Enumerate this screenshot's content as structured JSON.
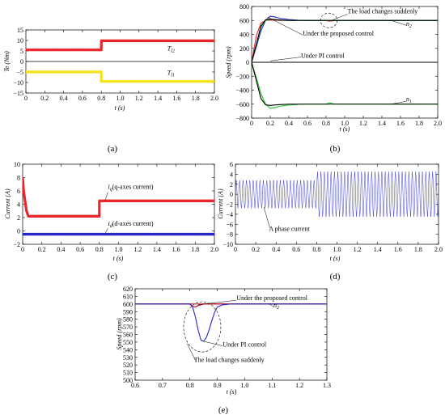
{
  "colors": {
    "red": "#e8262b",
    "yellow": "#f2e21c",
    "blue": "#2727c8",
    "green": "#22c02a",
    "black": "#000000",
    "dark_red": "#c0001a"
  },
  "chart_data": [
    {
      "id": "a",
      "type": "line",
      "caption": "(a)",
      "xlabel": "t (s)",
      "ylabel": "Te (Nm)",
      "xlim": [
        0,
        2.0
      ],
      "ylim": [
        -15,
        15
      ],
      "xticks": [
        "0",
        "0.2",
        "0.4",
        "0.6",
        "0.8",
        "1.0",
        "1.2",
        "1.4",
        "1.6",
        "1.8",
        "2.0"
      ],
      "yticks": [
        "15",
        "10",
        "5",
        "0",
        "−5",
        "−10",
        "−15"
      ],
      "grid": false,
      "series": [
        {
          "name": "T_l2",
          "label_main": "T",
          "label_sub": "l2",
          "color": "red",
          "x": [
            0,
            0.8,
            0.8,
            2.0
          ],
          "y": [
            5.5,
            5.5,
            9.8,
            9.8
          ]
        },
        {
          "name": "T_l1",
          "label_main": "T",
          "label_sub": "l1",
          "color": "yellow",
          "x": [
            0,
            0.8,
            0.8,
            2.0
          ],
          "y": [
            -5,
            -5,
            -9.5,
            -9.5
          ]
        }
      ],
      "ref_lines": [
        {
          "y": 0
        }
      ]
    },
    {
      "id": "b",
      "type": "line",
      "caption": "(b)",
      "xlabel": "t (s)",
      "ylabel": "Speed (rpm)",
      "xlim": [
        0,
        2.0
      ],
      "ylim": [
        -800,
        800
      ],
      "xticks": [
        "0",
        "0.2",
        "0.4",
        "0.6",
        "0.8",
        "1.0",
        "1.2",
        "1.4",
        "1.6",
        "1.8",
        "2.0"
      ],
      "yticks": [
        "800",
        "600",
        "400",
        "200",
        "0",
        "−200",
        "−400",
        "−600",
        "−800"
      ],
      "grid": false,
      "series": [
        {
          "name": "n2 reference",
          "color": "red",
          "x": [
            0,
            0.02,
            0.05,
            0.1,
            0.15,
            0.2,
            0.3,
            0.8,
            0.83,
            0.86,
            0.9,
            2.0
          ],
          "y": [
            0,
            150,
            380,
            560,
            600,
            605,
            600,
            600,
            590,
            592,
            600,
            600
          ]
        },
        {
          "name": "PI +",
          "color": "blue",
          "x": [
            0,
            0.05,
            0.1,
            0.15,
            0.2,
            0.25,
            0.3,
            0.4,
            0.5,
            0.6,
            2.0
          ],
          "y": [
            0,
            220,
            450,
            600,
            660,
            650,
            630,
            612,
            604,
            600,
            600
          ]
        },
        {
          "name": "proposed +",
          "color": "green",
          "x": [
            0,
            0.05,
            0.1,
            0.15,
            0.2,
            0.3,
            0.4,
            2.0
          ],
          "y": [
            0,
            250,
            500,
            600,
            615,
            605,
            600,
            600
          ]
        },
        {
          "name": "black +",
          "color": "black",
          "x": [
            0,
            0.05,
            0.1,
            0.15,
            0.2,
            0.3,
            0.4,
            2.0
          ],
          "y": [
            0,
            260,
            520,
            610,
            618,
            606,
            600,
            600
          ]
        },
        {
          "name": "PI −",
          "color": "green",
          "x": [
            0,
            0.05,
            0.1,
            0.15,
            0.2,
            0.25,
            0.3,
            0.4,
            0.5,
            0.6,
            0.8,
            0.84,
            0.88,
            2.0
          ],
          "y": [
            0,
            -220,
            -450,
            -600,
            -660,
            -650,
            -630,
            -612,
            -604,
            -600,
            -600,
            -580,
            -598,
            -600
          ]
        },
        {
          "name": "black −",
          "color": "black",
          "x": [
            0,
            0.05,
            0.1,
            0.15,
            0.2,
            0.3,
            0.4,
            2.0
          ],
          "y": [
            0,
            -260,
            -520,
            -610,
            -618,
            -606,
            -600,
            -600
          ]
        },
        {
          "name": "zero",
          "color": "black",
          "x": [
            0,
            2.0
          ],
          "y": [
            0,
            0
          ]
        }
      ],
      "annotations": [
        {
          "text": "The load changes suddenly",
          "x": 1.03,
          "y": 700
        },
        {
          "text_main": "n",
          "text_sub": "2",
          "x": 1.66,
          "y": 520
        },
        {
          "text": "Under the proposed control",
          "x": 0.55,
          "y": 380
        },
        {
          "text": "Under PI control",
          "x": 0.53,
          "y": 65
        },
        {
          "text_main": "n",
          "text_sub": "1",
          "x": 1.66,
          "y": -555
        }
      ],
      "circle": {
        "x": 0.83,
        "y": 600,
        "rx": 0.09,
        "ry": 105
      }
    },
    {
      "id": "c",
      "type": "line",
      "caption": "(c)",
      "xlabel": "t (s)",
      "ylabel": "Current (A)",
      "xlim": [
        0,
        2.0
      ],
      "ylim": [
        -2,
        10
      ],
      "xticks": [
        "0",
        "0.2",
        "0.4",
        "0.6",
        "0.8",
        "1.0",
        "1.2",
        "1.4",
        "1.6",
        "1.8",
        "2.0"
      ],
      "yticks": [
        "10",
        "8",
        "6",
        "4",
        "2",
        "0",
        "−2"
      ],
      "grid": false,
      "series": [
        {
          "name": "iq",
          "color": "red",
          "x": [
            0,
            0.01,
            0.04,
            0.06,
            0.8,
            0.8,
            2.0
          ],
          "y": [
            8,
            6,
            3,
            2.2,
            2.2,
            4.5,
            4.5
          ]
        },
        {
          "name": "id",
          "color": "blue",
          "x": [
            0,
            2.0
          ],
          "y": [
            -0.5,
            -0.5
          ]
        }
      ],
      "annotations": [
        {
          "text_main": "i",
          "text_sub": "q",
          "text_rest": "(q-axes current)",
          "x": 0.89,
          "y": 6.3
        },
        {
          "text_main": "i",
          "text_sub": "d",
          "text_rest": "(d-axes current)",
          "x": 0.89,
          "y": 0.8
        }
      ]
    },
    {
      "id": "d",
      "type": "line",
      "caption": "(d)",
      "xlabel": "t (s)",
      "ylabel": "Current (A)",
      "xlim": [
        0,
        2.0
      ],
      "ylim": [
        -10,
        6
      ],
      "xticks": [
        "0",
        "0.2",
        "0.4",
        "0.6",
        "0.8",
        "1.0",
        "1.2",
        "1.4",
        "1.6",
        "1.8",
        "2.0"
      ],
      "yticks": [
        "6",
        "4",
        "2",
        "0",
        "−2",
        "−4",
        "−6",
        "−8",
        "−10"
      ],
      "grid": false,
      "series": [
        {
          "name": "A phase current",
          "color": "blue",
          "segments": [
            {
              "x0": 0,
              "x1": 0.8,
              "amp": 2.8,
              "freq": 30
            },
            {
              "x0": 0.8,
              "x1": 2.0,
              "amp": 4.5,
              "freq": 30
            }
          ]
        }
      ],
      "annotations": [
        {
          "text": "A phase current",
          "x": 0.33,
          "y": -7.3
        }
      ]
    },
    {
      "id": "e",
      "type": "line",
      "caption": "(e)",
      "xlabel": "t (s)",
      "ylabel": "Speed (rpm)",
      "xlim": [
        0.6,
        1.3
      ],
      "ylim": [
        500,
        620
      ],
      "xticks": [
        "0.6",
        "0.7",
        "0.8",
        "0.9",
        "1.0",
        "1.1",
        "1.2",
        "1.3"
      ],
      "yticks": [
        "620",
        "610",
        "600",
        "590",
        "580",
        "570",
        "560",
        "550",
        "540",
        "530",
        "520",
        "510",
        "500"
      ],
      "grid": false,
      "series": [
        {
          "name": "n2",
          "color": "red",
          "x": [
            0.6,
            1.3
          ],
          "y": [
            600,
            600
          ]
        },
        {
          "name": "proposed",
          "color": "dark_red",
          "x": [
            0.6,
            0.8,
            0.81,
            0.82,
            0.83,
            0.85,
            1.3
          ],
          "y": [
            600,
            600,
            597,
            596,
            598,
            600,
            600
          ]
        },
        {
          "name": "PI",
          "color": "blue",
          "x": [
            0.6,
            0.8,
            0.81,
            0.82,
            0.83,
            0.84,
            0.85,
            0.86,
            0.87,
            0.88,
            0.89,
            0.9,
            0.92,
            0.95,
            1.3
          ],
          "y": [
            600,
            600,
            596,
            583,
            566,
            553,
            551,
            556,
            566,
            578,
            589,
            596,
            599,
            600,
            600
          ]
        }
      ],
      "annotations": [
        {
          "text": "Under the proposed control",
          "x": 0.97,
          "y": 605
        },
        {
          "text_main": "n",
          "text_sub": "2",
          "x": 1.105,
          "y": 595.5
        },
        {
          "text": "Under PI control",
          "x": 0.92,
          "y": 544
        },
        {
          "text": "The load changes suddenly",
          "x": 0.815,
          "y": 524
        }
      ],
      "circle": {
        "x": 0.845,
        "y": 570,
        "rx": 0.068,
        "ry": 33
      }
    }
  ]
}
